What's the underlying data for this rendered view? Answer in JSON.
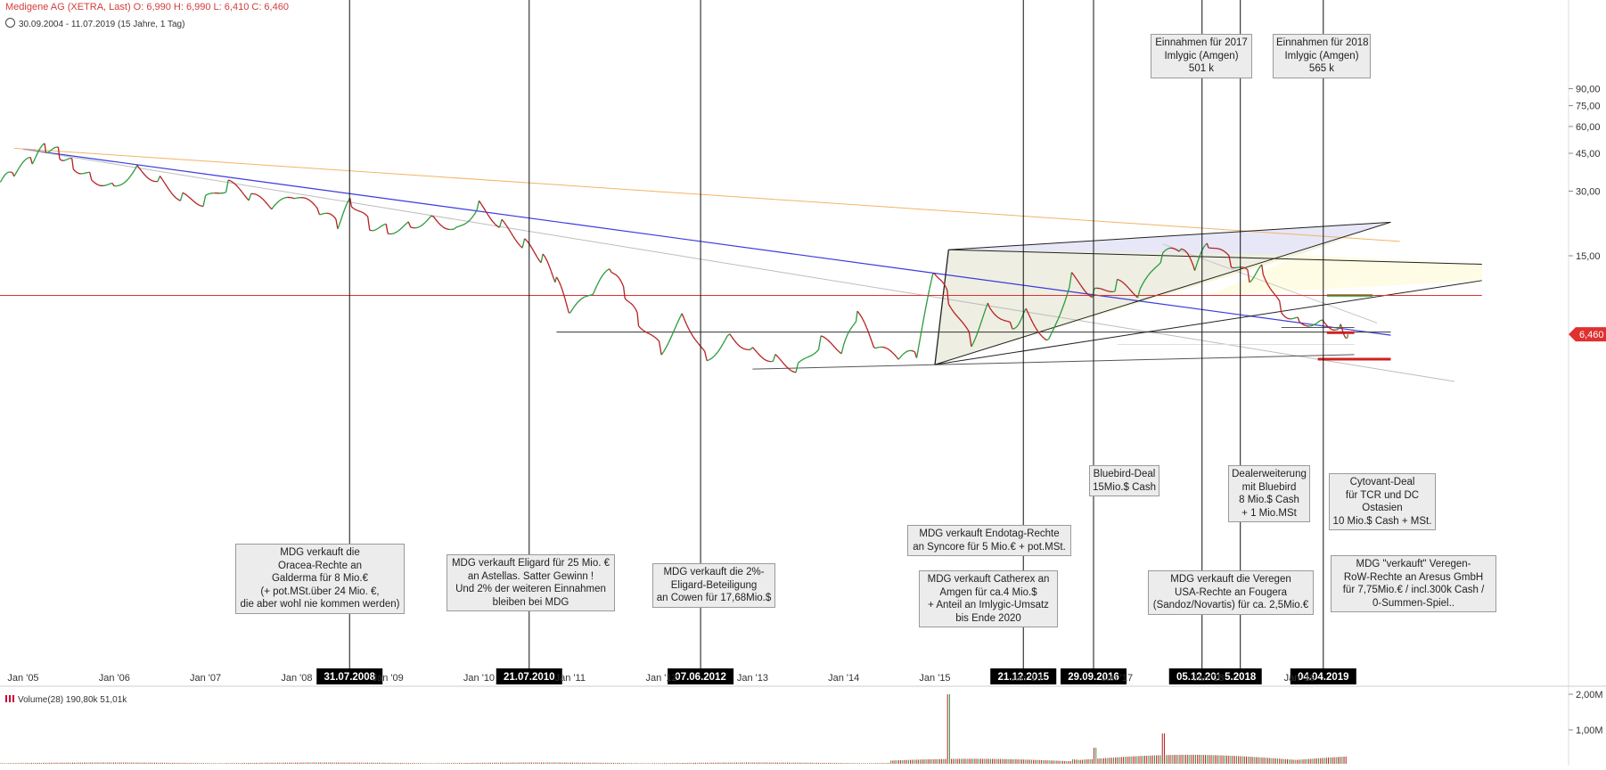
{
  "header": {
    "line1": "Medigene AG (XETRA, Last)  O: 6,990  H: 6,990  L: 6,410  C: 6,460",
    "line2": "30.09.2004 - 11.07.2019   (15 Jahre, 1 Tag)"
  },
  "volume_header": "Volume(28)  190,80k  51,01k",
  "colors": {
    "up": "#2a9a3a",
    "down": "#b52020",
    "last_price": "#e03030",
    "blue_trend": "#3a3adf",
    "orange_trend": "#f2b466"
  },
  "chart_data": {
    "type": "line",
    "title": "",
    "xlabel": "",
    "ylabel": "",
    "price_axis": {
      "scale": "log",
      "ticks": [
        90,
        75,
        60,
        45,
        30,
        15
      ],
      "tick_labels": [
        "90,00",
        "75,00",
        "60,00",
        "45,00",
        "30,00",
        "15,00"
      ]
    },
    "last_price": 6.46,
    "last_price_label": "6,460",
    "x_ticks": [
      "Jan '05",
      "Jan '06",
      "Jan '07",
      "Jan '08",
      "Jan '09",
      "Jan '10",
      "Jan '11",
      "Jan '12",
      "Jan '13",
      "Jan '14",
      "Jan '15",
      "Jan '16",
      "Jan '17",
      "Jan '18",
      "Jan '19"
    ],
    "series": [
      {
        "x": [
          2004.75,
          2004.9,
          2005.1,
          2005.25,
          2005.4,
          2005.55,
          2005.75,
          2006.0,
          2006.25,
          2006.5,
          2006.75,
          2007.0,
          2007.25,
          2007.5,
          2007.75,
          2008.0,
          2008.25,
          2008.45,
          2008.6,
          2008.8,
          2009.0,
          2009.25,
          2009.5,
          2009.75,
          2010.0,
          2010.25,
          2010.5,
          2010.7,
          2010.85,
          2011.0,
          2011.25,
          2011.45,
          2011.6,
          2011.75,
          2012.0,
          2012.25,
          2012.5,
          2012.75,
          2013.0,
          2013.25,
          2013.5,
          2013.75,
          2014.0,
          2014.15,
          2014.35,
          2014.6,
          2014.8,
          2015.0,
          2015.15,
          2015.4,
          2015.6,
          2015.85,
          2016.0,
          2016.25,
          2016.5,
          2016.75,
          2017.0,
          2017.25,
          2017.5,
          2017.7,
          2017.85,
          2018.0,
          2018.25,
          2018.45,
          2018.6,
          2018.8,
          2019.0,
          2019.25,
          2019.45,
          2019.53
        ],
        "values": [
          33,
          36,
          42,
          48,
          45,
          40,
          35,
          32,
          39,
          34,
          28,
          27,
          32,
          28,
          25,
          28,
          24,
          21,
          27,
          21,
          20,
          21,
          23,
          20,
          26,
          21,
          17,
          14.5,
          11.5,
          8,
          10,
          13,
          10,
          7.5,
          5.5,
          8,
          5,
          6.5,
          5.5,
          5,
          4.5,
          6,
          5.5,
          8,
          5.5,
          5,
          5.2,
          13,
          9.5,
          6,
          9,
          7,
          8.5,
          6,
          12,
          10,
          11,
          10,
          15,
          16,
          13,
          17,
          14,
          12,
          13,
          8.5,
          7.5,
          7.5,
          7,
          6.46
        ]
      }
    ],
    "events": [
      {
        "date": "31.07.2008",
        "x": 2008.58,
        "text": "MDG verkauft die\nOracea-Rechte an\nGalderma für 8 Mio.€\n(+ pot.MSt.über 24 Mio. €,\ndie aber wohl nie kommen werden)"
      },
      {
        "date": "21.07.2010",
        "x": 2010.55,
        "text": "MDG verkauft Eligard für 25 Mio. €\nan Astellas. Satter Gewinn !\nUnd 2% der weiteren Einnahmen\nbleiben bei MDG"
      },
      {
        "date": "07.06.2012",
        "x": 2012.43,
        "text": "MDG verkauft die 2%-\nEligard-Beteiligung\nan Cowen für 17,68Mio.$"
      },
      {
        "date": "21.12.2015",
        "x": 2015.97,
        "text": "MDG verkauft Endotag-Rechte\nan Syncore für 5 Mio.€ + pot.MSt."
      },
      {
        "date": "29.09.2016",
        "x": 2016.74,
        "text": "Bluebird-Deal\n15Mio.$ Cash"
      },
      {
        "date": "05.12.2017",
        "x": 2017.93,
        "text": "MDG verkauft die Veregen\nUSA-Rechte an Fougera\n(Sandoz/Novartis) für ca. 2,5Mio.€"
      },
      {
        "date": "5.2018",
        "x": 2018.35,
        "text": "Dealerweiterung\nmit Bluebird\n8 Mio.$ Cash\n+ 1 Mio.MSt"
      },
      {
        "date": "04.04.2019",
        "x": 2019.26,
        "text": "Cytovant-Deal\nfür TCR und DC\nOstasien\n10 Mio.$ Cash + MSt."
      }
    ],
    "annotations": [
      "MDG verkauft Catherex an\nAmgen für ca.4 Mio.$\n+ Anteil an Imlygic-Umsatz\nbis Ende 2020",
      "Einnahmen für 2017\nImlygic (Amgen)\n501 k",
      "Einnahmen für 2018\nImlygic (Amgen)\n565 k",
      "MDG \"verkauft\" Veregen-\nRoW-Rechte an Aresus GmbH\nfür 7,75Mio.€ / incl.300k Cash /\n0-Summen-Spiel.."
    ],
    "volume": {
      "name": "Volume(28)",
      "ticks": [
        2000000,
        1000000
      ],
      "tick_labels": [
        "2,00M",
        "1,00M"
      ],
      "last": "190,80k",
      "avg": "51,01k"
    }
  }
}
